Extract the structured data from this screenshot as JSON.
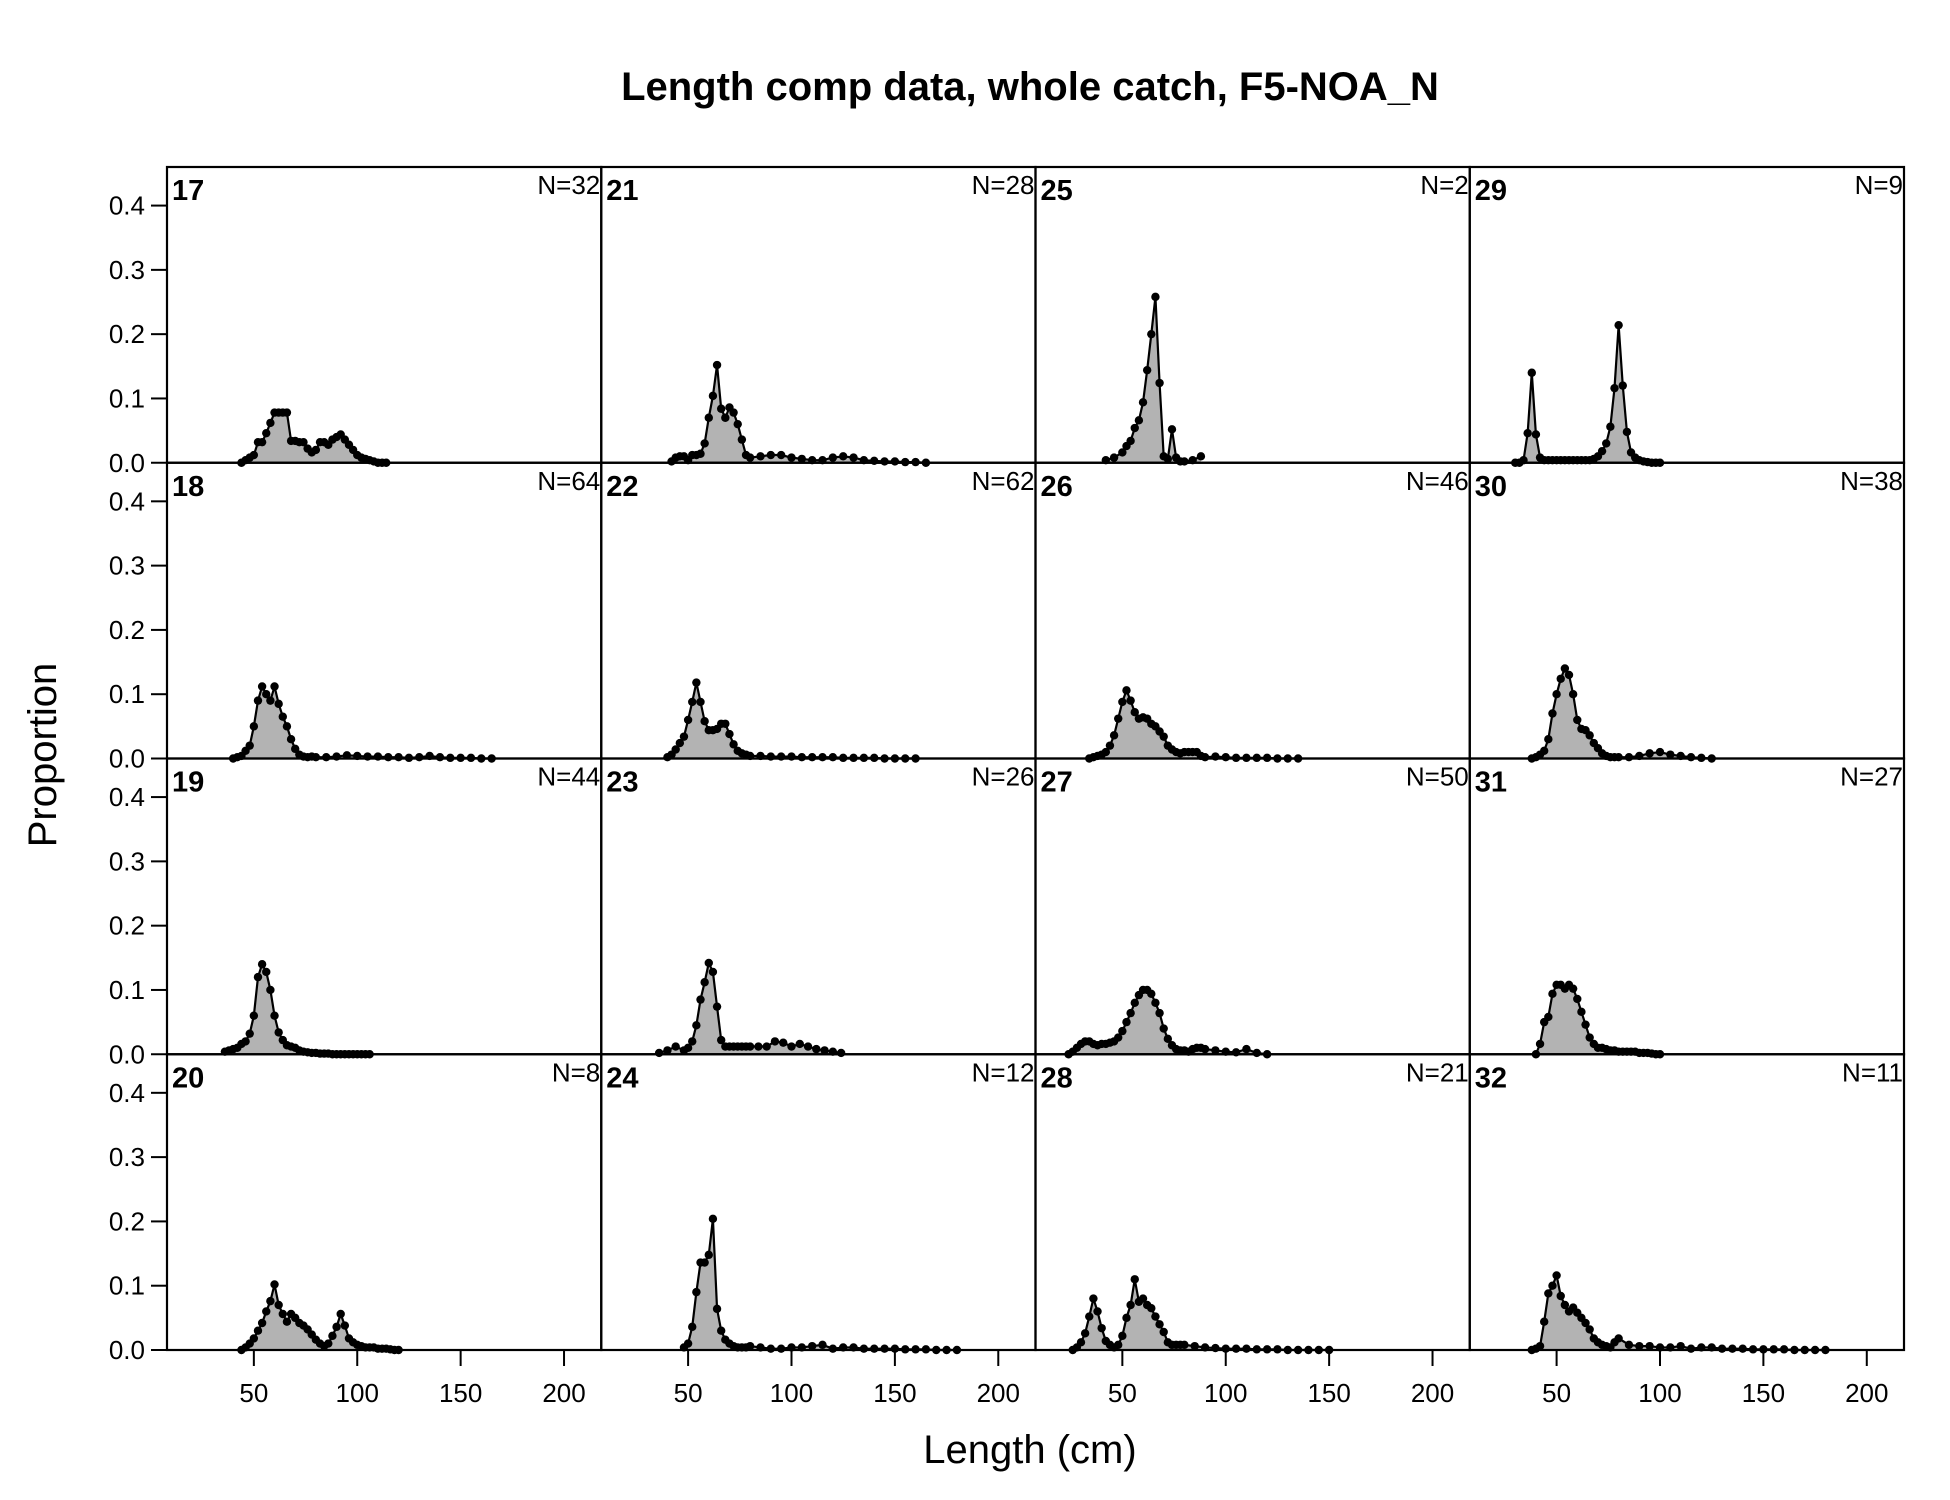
{
  "chart_data": {
    "type": "area",
    "title": "Length comp data, whole catch, F5-NOA_N",
    "xlabel": "Length (cm)",
    "ylabel": "Proportion",
    "xlim": [
      8,
      218
    ],
    "ylim": [
      0,
      0.46
    ],
    "xticks": [
      50,
      100,
      150,
      200
    ],
    "yticks": [
      0.0,
      0.1,
      0.2,
      0.3,
      0.4
    ],
    "ytick_labels": [
      "0.0",
      "0.1",
      "0.2",
      "0.3",
      "0.4"
    ],
    "layout": {
      "columns": 4,
      "rows": 4,
      "order": "column-major"
    },
    "fill_color": "#b3b3b3",
    "line_color": "#000000",
    "panels": [
      {
        "id": "17",
        "n": "N=32",
        "x": [
          44,
          46,
          48,
          50,
          52,
          54,
          56,
          58,
          60,
          62,
          64,
          66,
          68,
          70,
          72,
          74,
          76,
          78,
          80,
          82,
          84,
          86,
          88,
          90,
          92,
          94,
          96,
          98,
          100,
          102,
          104,
          106,
          108,
          110,
          112,
          114
        ],
        "y": [
          0.0,
          0.004,
          0.008,
          0.012,
          0.032,
          0.032,
          0.046,
          0.062,
          0.078,
          0.078,
          0.078,
          0.078,
          0.034,
          0.034,
          0.032,
          0.032,
          0.022,
          0.016,
          0.02,
          0.032,
          0.032,
          0.028,
          0.036,
          0.04,
          0.044,
          0.036,
          0.028,
          0.02,
          0.012,
          0.008,
          0.006,
          0.004,
          0.002,
          0.0,
          0.0,
          0.0
        ]
      },
      {
        "id": "18",
        "n": "N=64",
        "x": [
          40,
          42,
          44,
          46,
          48,
          50,
          52,
          54,
          56,
          58,
          60,
          62,
          64,
          66,
          68,
          70,
          72,
          74,
          76,
          78,
          80,
          85,
          90,
          95,
          100,
          105,
          110,
          115,
          120,
          125,
          130,
          135,
          140,
          145,
          150,
          155,
          160,
          165
        ],
        "y": [
          0.0,
          0.002,
          0.004,
          0.012,
          0.02,
          0.05,
          0.09,
          0.112,
          0.1,
          0.09,
          0.112,
          0.085,
          0.065,
          0.05,
          0.03,
          0.015,
          0.006,
          0.003,
          0.002,
          0.003,
          0.002,
          0.002,
          0.003,
          0.005,
          0.004,
          0.003,
          0.003,
          0.002,
          0.002,
          0.001,
          0.002,
          0.004,
          0.002,
          0.001,
          0.001,
          0.001,
          0.0,
          0.0
        ]
      },
      {
        "id": "19",
        "n": "N=44",
        "x": [
          36,
          38,
          40,
          42,
          44,
          46,
          48,
          50,
          52,
          54,
          56,
          58,
          60,
          62,
          64,
          66,
          68,
          70,
          72,
          74,
          76,
          78,
          80,
          82,
          84,
          86,
          88,
          90,
          92,
          94,
          96,
          98,
          100,
          102,
          104,
          106
        ],
        "y": [
          0.004,
          0.006,
          0.008,
          0.01,
          0.016,
          0.02,
          0.032,
          0.06,
          0.12,
          0.14,
          0.128,
          0.1,
          0.06,
          0.034,
          0.022,
          0.014,
          0.012,
          0.01,
          0.006,
          0.004,
          0.003,
          0.002,
          0.002,
          0.001,
          0.001,
          0.001,
          0.0,
          0.0,
          0.0,
          0.0,
          0.0,
          0.0,
          0.0,
          0.0,
          0.0,
          0.0
        ]
      },
      {
        "id": "20",
        "n": "N=8",
        "x": [
          44,
          46,
          48,
          50,
          52,
          54,
          56,
          58,
          60,
          62,
          64,
          66,
          68,
          70,
          72,
          74,
          76,
          78,
          80,
          82,
          84,
          86,
          88,
          90,
          92,
          94,
          96,
          98,
          100,
          102,
          104,
          106,
          108,
          110,
          112,
          114,
          116,
          118,
          120
        ],
        "y": [
          0.0,
          0.004,
          0.01,
          0.018,
          0.03,
          0.042,
          0.06,
          0.076,
          0.102,
          0.07,
          0.056,
          0.044,
          0.056,
          0.05,
          0.042,
          0.038,
          0.032,
          0.024,
          0.016,
          0.01,
          0.006,
          0.01,
          0.022,
          0.036,
          0.056,
          0.038,
          0.018,
          0.012,
          0.008,
          0.006,
          0.004,
          0.004,
          0.004,
          0.002,
          0.002,
          0.002,
          0.001,
          0.0,
          0.0
        ]
      },
      {
        "id": "21",
        "n": "N=28",
        "x": [
          42,
          44,
          46,
          48,
          50,
          52,
          54,
          56,
          58,
          60,
          62,
          64,
          66,
          68,
          70,
          72,
          74,
          76,
          78,
          80,
          85,
          90,
          95,
          100,
          105,
          110,
          115,
          120,
          125,
          130,
          135,
          140,
          145,
          150,
          155,
          160,
          165
        ],
        "y": [
          0.002,
          0.008,
          0.01,
          0.01,
          0.004,
          0.012,
          0.012,
          0.014,
          0.03,
          0.07,
          0.104,
          0.152,
          0.084,
          0.07,
          0.086,
          0.078,
          0.06,
          0.036,
          0.012,
          0.008,
          0.01,
          0.012,
          0.012,
          0.008,
          0.006,
          0.004,
          0.004,
          0.008,
          0.01,
          0.008,
          0.004,
          0.003,
          0.002,
          0.002,
          0.001,
          0.001,
          0.0
        ]
      },
      {
        "id": "22",
        "n": "N=62",
        "x": [
          40,
          42,
          44,
          46,
          48,
          50,
          52,
          54,
          56,
          58,
          60,
          62,
          64,
          66,
          68,
          70,
          72,
          74,
          76,
          78,
          80,
          85,
          90,
          95,
          100,
          105,
          110,
          115,
          120,
          125,
          130,
          135,
          140,
          145,
          150,
          155,
          160
        ],
        "y": [
          0.002,
          0.006,
          0.014,
          0.024,
          0.034,
          0.06,
          0.088,
          0.118,
          0.088,
          0.058,
          0.044,
          0.044,
          0.046,
          0.054,
          0.054,
          0.038,
          0.022,
          0.012,
          0.008,
          0.006,
          0.004,
          0.004,
          0.003,
          0.003,
          0.003,
          0.002,
          0.002,
          0.002,
          0.002,
          0.001,
          0.001,
          0.001,
          0.001,
          0.0,
          0.0,
          0.0,
          0.0
        ]
      },
      {
        "id": "23",
        "n": "N=26",
        "x": [
          36,
          40,
          44,
          48,
          50,
          52,
          54,
          56,
          58,
          60,
          62,
          64,
          66,
          68,
          70,
          72,
          74,
          76,
          78,
          80,
          84,
          88,
          92,
          96,
          100,
          104,
          108,
          112,
          116,
          120,
          124
        ],
        "y": [
          0.002,
          0.006,
          0.012,
          0.006,
          0.01,
          0.02,
          0.045,
          0.085,
          0.112,
          0.142,
          0.128,
          0.074,
          0.022,
          0.012,
          0.012,
          0.012,
          0.012,
          0.012,
          0.012,
          0.012,
          0.012,
          0.012,
          0.02,
          0.018,
          0.012,
          0.016,
          0.012,
          0.008,
          0.006,
          0.004,
          0.002
        ]
      },
      {
        "id": "24",
        "n": "N=12",
        "x": [
          48,
          50,
          52,
          54,
          56,
          58,
          60,
          62,
          64,
          66,
          68,
          70,
          72,
          74,
          76,
          78,
          80,
          85,
          90,
          95,
          100,
          105,
          110,
          115,
          120,
          125,
          130,
          135,
          140,
          145,
          150,
          155,
          160,
          165,
          170,
          175,
          180
        ],
        "y": [
          0.004,
          0.01,
          0.036,
          0.09,
          0.136,
          0.136,
          0.148,
          0.204,
          0.064,
          0.03,
          0.016,
          0.01,
          0.006,
          0.004,
          0.004,
          0.004,
          0.006,
          0.004,
          0.002,
          0.002,
          0.004,
          0.004,
          0.006,
          0.008,
          0.002,
          0.004,
          0.004,
          0.002,
          0.002,
          0.002,
          0.002,
          0.001,
          0.001,
          0.001,
          0.0,
          0.0,
          0.0
        ]
      },
      {
        "id": "25",
        "n": "N=2",
        "x": [
          42,
          46,
          50,
          52,
          54,
          56,
          58,
          60,
          62,
          64,
          66,
          68,
          70,
          72,
          74,
          76,
          78,
          80,
          84,
          88
        ],
        "y": [
          0.004,
          0.008,
          0.016,
          0.026,
          0.034,
          0.054,
          0.066,
          0.094,
          0.144,
          0.2,
          0.258,
          0.124,
          0.01,
          0.006,
          0.052,
          0.008,
          0.002,
          0.002,
          0.004,
          0.01
        ]
      },
      {
        "id": "26",
        "n": "N=46",
        "x": [
          34,
          36,
          38,
          40,
          42,
          44,
          46,
          48,
          50,
          52,
          54,
          56,
          58,
          60,
          62,
          64,
          66,
          68,
          70,
          72,
          74,
          76,
          78,
          80,
          82,
          84,
          86,
          88,
          90,
          95,
          100,
          105,
          110,
          115,
          120,
          125,
          130,
          135
        ],
        "y": [
          0.0,
          0.002,
          0.004,
          0.006,
          0.01,
          0.02,
          0.036,
          0.062,
          0.088,
          0.106,
          0.09,
          0.072,
          0.062,
          0.064,
          0.062,
          0.054,
          0.05,
          0.042,
          0.034,
          0.02,
          0.014,
          0.01,
          0.008,
          0.01,
          0.01,
          0.01,
          0.01,
          0.004,
          0.002,
          0.003,
          0.002,
          0.001,
          0.001,
          0.001,
          0.001,
          0.0,
          0.0,
          0.0
        ]
      },
      {
        "id": "27",
        "n": "N=50",
        "x": [
          24,
          26,
          28,
          30,
          32,
          34,
          36,
          38,
          40,
          42,
          44,
          46,
          48,
          50,
          52,
          54,
          56,
          58,
          60,
          62,
          64,
          66,
          68,
          70,
          72,
          74,
          76,
          78,
          80,
          82,
          84,
          86,
          88,
          90,
          95,
          100,
          105,
          110,
          115,
          120
        ],
        "y": [
          0.0,
          0.004,
          0.01,
          0.016,
          0.02,
          0.02,
          0.016,
          0.014,
          0.016,
          0.016,
          0.018,
          0.02,
          0.026,
          0.036,
          0.05,
          0.064,
          0.08,
          0.092,
          0.1,
          0.1,
          0.094,
          0.08,
          0.064,
          0.04,
          0.024,
          0.014,
          0.008,
          0.006,
          0.006,
          0.004,
          0.008,
          0.01,
          0.01,
          0.008,
          0.006,
          0.004,
          0.003,
          0.008,
          0.002,
          0.0
        ]
      },
      {
        "id": "28",
        "n": "N=21",
        "x": [
          26,
          28,
          30,
          32,
          34,
          36,
          38,
          40,
          42,
          44,
          46,
          48,
          50,
          52,
          54,
          56,
          58,
          60,
          62,
          64,
          66,
          68,
          70,
          72,
          74,
          76,
          78,
          80,
          85,
          90,
          95,
          100,
          105,
          110,
          115,
          120,
          125,
          130,
          135,
          140,
          145,
          150
        ],
        "y": [
          0.0,
          0.004,
          0.012,
          0.026,
          0.052,
          0.08,
          0.06,
          0.034,
          0.014,
          0.008,
          0.004,
          0.008,
          0.022,
          0.05,
          0.07,
          0.11,
          0.075,
          0.08,
          0.07,
          0.065,
          0.052,
          0.04,
          0.028,
          0.012,
          0.008,
          0.008,
          0.008,
          0.008,
          0.006,
          0.004,
          0.003,
          0.002,
          0.002,
          0.002,
          0.001,
          0.001,
          0.001,
          0.0,
          0.0,
          0.0,
          0.0,
          0.0
        ]
      },
      {
        "id": "29",
        "n": "N=9",
        "x": [
          30,
          32,
          34,
          36,
          38,
          40,
          42,
          44,
          46,
          48,
          50,
          52,
          54,
          56,
          58,
          60,
          62,
          64,
          66,
          68,
          70,
          72,
          74,
          76,
          78,
          80,
          82,
          84,
          86,
          88,
          90,
          92,
          94,
          96,
          98,
          100
        ],
        "y": [
          0.0,
          0.0,
          0.004,
          0.046,
          0.14,
          0.044,
          0.008,
          0.004,
          0.004,
          0.004,
          0.004,
          0.004,
          0.004,
          0.004,
          0.004,
          0.004,
          0.004,
          0.004,
          0.004,
          0.006,
          0.01,
          0.018,
          0.03,
          0.056,
          0.116,
          0.214,
          0.12,
          0.048,
          0.016,
          0.008,
          0.004,
          0.002,
          0.001,
          0.0,
          0.0,
          0.0
        ]
      },
      {
        "id": "30",
        "n": "N=38",
        "x": [
          38,
          40,
          42,
          44,
          46,
          48,
          50,
          52,
          54,
          56,
          58,
          60,
          62,
          64,
          66,
          68,
          70,
          72,
          74,
          76,
          78,
          80,
          85,
          90,
          95,
          100,
          105,
          110,
          115,
          120,
          125
        ],
        "y": [
          0.0,
          0.002,
          0.006,
          0.012,
          0.03,
          0.07,
          0.1,
          0.124,
          0.14,
          0.13,
          0.1,
          0.06,
          0.046,
          0.044,
          0.036,
          0.024,
          0.016,
          0.008,
          0.004,
          0.002,
          0.002,
          0.002,
          0.002,
          0.004,
          0.008,
          0.01,
          0.006,
          0.004,
          0.002,
          0.001,
          0.0
        ]
      },
      {
        "id": "31",
        "n": "N=27",
        "x": [
          40,
          42,
          44,
          46,
          48,
          50,
          52,
          54,
          56,
          58,
          60,
          62,
          64,
          66,
          68,
          70,
          72,
          74,
          76,
          78,
          80,
          82,
          84,
          86,
          88,
          90,
          92,
          94,
          96,
          98,
          100
        ],
        "y": [
          0.0,
          0.016,
          0.05,
          0.058,
          0.094,
          0.108,
          0.108,
          0.102,
          0.108,
          0.102,
          0.086,
          0.066,
          0.046,
          0.026,
          0.016,
          0.01,
          0.01,
          0.008,
          0.006,
          0.006,
          0.004,
          0.004,
          0.004,
          0.004,
          0.004,
          0.002,
          0.002,
          0.002,
          0.001,
          0.0,
          0.0
        ]
      },
      {
        "id": "32",
        "n": "N=11",
        "x": [
          38,
          40,
          42,
          44,
          46,
          48,
          50,
          52,
          54,
          56,
          58,
          60,
          62,
          64,
          66,
          68,
          70,
          72,
          74,
          76,
          78,
          80,
          85,
          90,
          95,
          100,
          105,
          110,
          115,
          120,
          125,
          130,
          135,
          140,
          145,
          150,
          155,
          160,
          165,
          170,
          175,
          180
        ],
        "y": [
          0.0,
          0.002,
          0.006,
          0.044,
          0.088,
          0.1,
          0.116,
          0.084,
          0.07,
          0.06,
          0.066,
          0.058,
          0.05,
          0.042,
          0.032,
          0.018,
          0.012,
          0.008,
          0.006,
          0.004,
          0.012,
          0.018,
          0.008,
          0.006,
          0.006,
          0.004,
          0.004,
          0.006,
          0.002,
          0.004,
          0.004,
          0.002,
          0.002,
          0.002,
          0.001,
          0.001,
          0.001,
          0.001,
          0.0,
          0.0,
          0.0,
          0.0
        ]
      }
    ]
  }
}
